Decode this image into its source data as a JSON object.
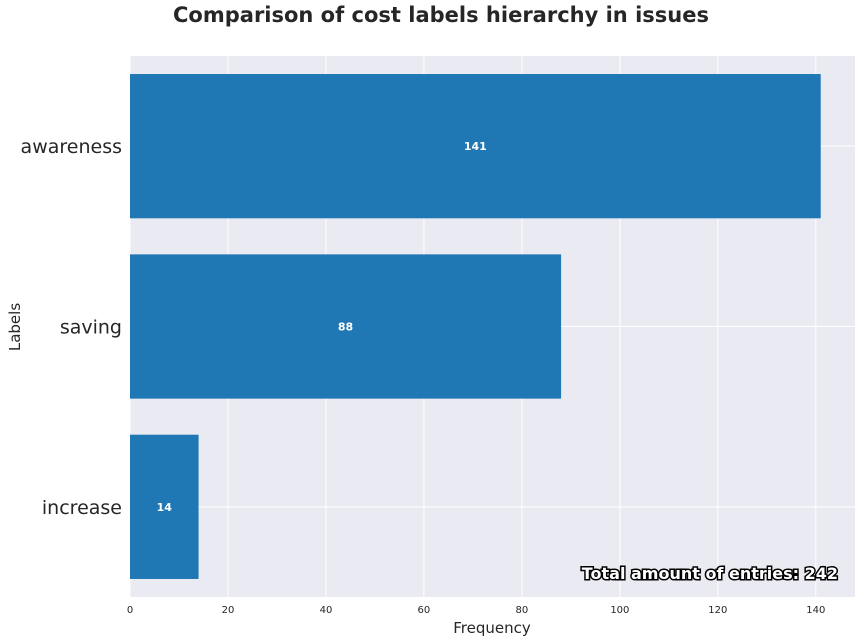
{
  "chart_data": {
    "type": "bar",
    "orientation": "horizontal",
    "title": "Comparison of cost labels hierarchy in issues",
    "xlabel": "Frequency",
    "ylabel": "Labels",
    "categories": [
      "awareness",
      "saving",
      "increase"
    ],
    "values": [
      141,
      88,
      14
    ],
    "value_labels": [
      "141",
      "88",
      "14"
    ],
    "xlim": [
      0,
      148
    ],
    "xticks": [
      0,
      20,
      40,
      60,
      80,
      100,
      120,
      140
    ],
    "grid": true,
    "annotation": "Total amount of entries: 242",
    "colors": {
      "bar": "#1f77b4",
      "plot_background": "#eaeaf2",
      "grid": "#ffffff",
      "text": "#262626"
    }
  }
}
